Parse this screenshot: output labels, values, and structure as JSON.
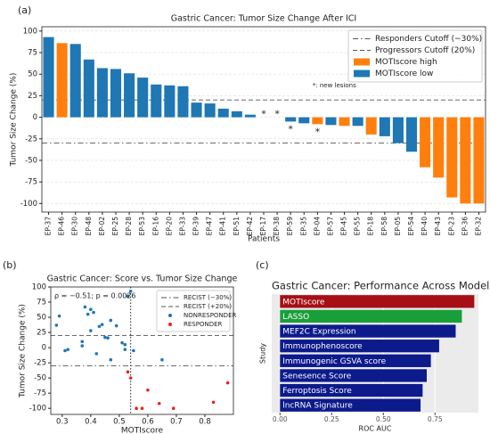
{
  "chart_data": [
    {
      "type": "bar",
      "panel_label": "(a)",
      "title": "Gastric Cancer: Tumor Size Change After ICI",
      "x_label": "Patients",
      "y_label": "Tumor Size Change (%)",
      "categories": [
        "EP-37",
        "EP-46",
        "EP-30",
        "EP-48",
        "EP-02",
        "EP-25",
        "EP-28",
        "EP-53",
        "EP-16",
        "EP-20",
        "EP-33",
        "EP-39",
        "EP-47",
        "EP-41",
        "EP-51",
        "EP-42",
        "EP-17",
        "EP-38",
        "EP-59",
        "EP-35",
        "EP-04",
        "EP-57",
        "EP-45",
        "EP-55",
        "EP-18",
        "EP-58",
        "EP-05",
        "EP-54",
        "EP-40",
        "EP-43",
        "EP-23",
        "EP-36",
        "EP-32"
      ],
      "series": [
        {
          "name": "MOTIscore high",
          "color": "#ff7f0e",
          "values": [
            null,
            86,
            null,
            null,
            null,
            null,
            null,
            null,
            null,
            null,
            null,
            null,
            null,
            null,
            null,
            null,
            null,
            null,
            null,
            null,
            -8,
            null,
            -10,
            null,
            -20,
            null,
            null,
            null,
            -58,
            -70,
            -93,
            -100,
            -100
          ]
        },
        {
          "name": "MOTIscore low",
          "color": "#1f77b4",
          "values": [
            93,
            null,
            85,
            67,
            57,
            56,
            51,
            46,
            38,
            37,
            36,
            17,
            16,
            10,
            7,
            3,
            0,
            0,
            -5,
            -7,
            null,
            -9,
            null,
            -10,
            null,
            -22,
            -30,
            -40,
            null,
            null,
            null,
            null,
            null
          ]
        }
      ],
      "markers": [
        null,
        null,
        null,
        null,
        null,
        null,
        null,
        null,
        null,
        null,
        null,
        null,
        null,
        null,
        null,
        null,
        "*",
        "*",
        "*",
        null,
        "*",
        null,
        null,
        null,
        null,
        null,
        null,
        null,
        null,
        null,
        null,
        null,
        null
      ],
      "annotation": "*: new lesions",
      "hlines": [
        {
          "name": "Responders Cutoff (−30%)",
          "value": -30,
          "style": "dashdot"
        },
        {
          "name": "Progressors Cutoff (20%)",
          "value": 20,
          "style": "dashed"
        }
      ],
      "ylim": [
        -110,
        105
      ],
      "yticks": [
        -100,
        -75,
        -50,
        -25,
        0,
        25,
        50,
        75,
        100
      ],
      "grid": true,
      "legend": "upper right"
    },
    {
      "type": "scatter",
      "panel_label": "(b)",
      "title": "Gastric Cancer: Score vs. Tumor Size Change",
      "x_label": "MOTIscore",
      "y_label": "Tumor Size Change (%)",
      "annotation": "ρ = −0.51; p = 0.0026",
      "series": [
        {
          "name": "NONRESPONDER",
          "color": "#1f77b4",
          "x": [
            0.28,
            0.29,
            0.31,
            0.32,
            0.37,
            0.37,
            0.38,
            0.39,
            0.4,
            0.4,
            0.41,
            0.42,
            0.43,
            0.44,
            0.45,
            0.46,
            0.47,
            0.47,
            0.49,
            0.51,
            0.52,
            0.52,
            0.53,
            0.54,
            0.55,
            0.65
          ],
          "values": [
            37,
            52,
            -5,
            -3,
            10,
            3,
            67,
            55,
            63,
            28,
            58,
            -10,
            35,
            38,
            17,
            16,
            -20,
            45,
            36,
            8,
            5,
            -3,
            85,
            93,
            -5,
            -20
          ]
        },
        {
          "name": "RESPONDER",
          "color": "#e8231c",
          "x": [
            0.53,
            0.54,
            0.56,
            0.58,
            0.6,
            0.64,
            0.69,
            0.83,
            0.88
          ],
          "values": [
            -40,
            -50,
            -100,
            -100,
            -70,
            -92,
            -100,
            -90,
            -58
          ]
        }
      ],
      "hlines": [
        {
          "name": "RECIST (−30%)",
          "value": -30,
          "style": "dashdot"
        },
        {
          "name": "RECIST (+20%)",
          "value": 20,
          "style": "dashed"
        }
      ],
      "vlines": [
        {
          "value": 0.54,
          "style": "dotted"
        }
      ],
      "xlim": [
        0.26,
        0.9
      ],
      "xticks": [
        0.3,
        0.4,
        0.5,
        0.6,
        0.7,
        0.8
      ],
      "ylim": [
        -110,
        100
      ],
      "yticks": [
        -100,
        -75,
        -50,
        -25,
        0,
        25,
        50,
        75,
        100
      ],
      "legend": "upper right"
    },
    {
      "type": "hbar",
      "panel_label": "(c)",
      "title": "Gastric Cancer: Performance Across Models",
      "x_label": "ROC AUC",
      "y_label": "Study",
      "categories": [
        "MOTIscore",
        "LASSO",
        "MEF2C Expression",
        "Immunophenoscore",
        "Immunogenic GSVA score",
        "Senesence Score",
        "Ferroptosis Score",
        "lncRNA Signature"
      ],
      "values": [
        0.94,
        0.88,
        0.85,
        0.77,
        0.73,
        0.71,
        0.69,
        0.68
      ],
      "colors": [
        "#a50f15",
        "#1a9e3a",
        "#0c1a8c",
        "#0c1a8c",
        "#0c1a8c",
        "#0c1a8c",
        "#0c1a8c",
        "#0c1a8c"
      ],
      "vlines": [
        {
          "value": 0.5,
          "style": "dashed"
        }
      ],
      "xlim": [
        -0.04,
        0.96
      ],
      "xticks": [
        {
          "value": 0,
          "label": "0.00"
        },
        {
          "value": 0.25,
          "label": "0.25"
        },
        {
          "value": 0.5,
          "label": "0.50"
        },
        {
          "value": 0.75,
          "label": "0.75"
        }
      ],
      "grid": true
    }
  ]
}
